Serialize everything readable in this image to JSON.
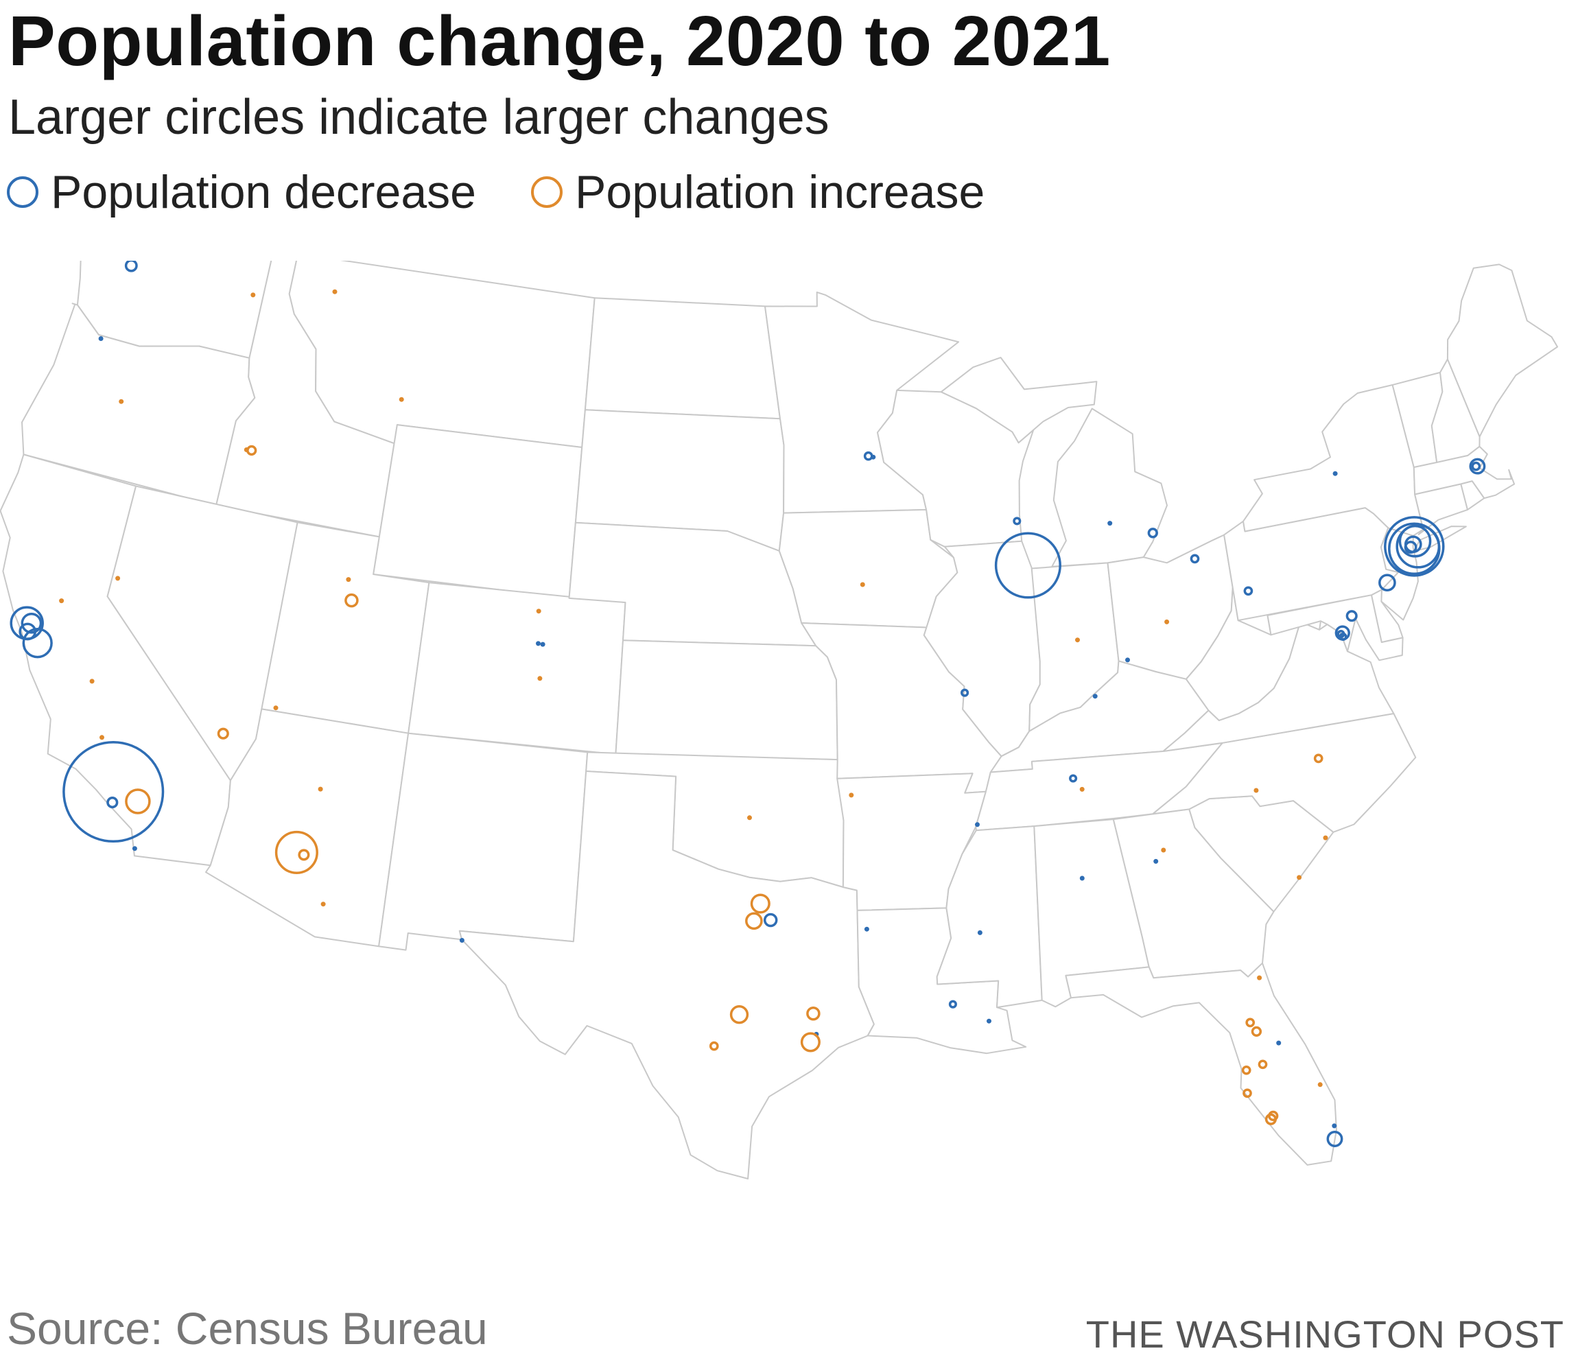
{
  "title": "Population change, 2020 to 2021",
  "subtitle": "Larger circles indicate larger changes",
  "legend": {
    "decrease": {
      "label": "Population decrease",
      "color": "#2e6db4"
    },
    "increase": {
      "label": "Population increase",
      "color": "#e08a2c"
    }
  },
  "source": "Source: Census Bureau",
  "credit": "THE WASHINGTON POST",
  "colors": {
    "state_fill": "#ffffff",
    "state_border": "#c8c8c8",
    "decrease": "#2e6db4",
    "increase": "#e08a2c"
  },
  "map": {
    "projection": "albers-usa-contiguous",
    "states": [
      "WA",
      "OR",
      "CA",
      "ID",
      "NV",
      "MT",
      "WY",
      "UT",
      "AZ",
      "CO",
      "NM",
      "ND",
      "SD",
      "NE",
      "KS",
      "OK",
      "TX",
      "MN",
      "IA",
      "MO",
      "AR",
      "LA",
      "WI",
      "IL",
      "MI",
      "IN",
      "OH",
      "KY",
      "TN",
      "MS",
      "AL",
      "GA",
      "FL",
      "SC",
      "NC",
      "VA",
      "WV",
      "MD",
      "DE",
      "PA",
      "NJ",
      "NY",
      "CT",
      "RI",
      "MA",
      "VT",
      "NH",
      "ME"
    ]
  },
  "points": [
    {
      "place": "New York",
      "lon": -73.95,
      "lat": 40.72,
      "type": "decrease",
      "magnitude": 5.0
    },
    {
      "place": "Brooklyn",
      "lon": -73.97,
      "lat": 40.66,
      "type": "decrease",
      "magnitude": 4.3
    },
    {
      "place": "Queens",
      "lon": -73.82,
      "lat": 40.7,
      "type": "decrease",
      "magnitude": 3.6
    },
    {
      "place": "Bronx",
      "lon": -73.88,
      "lat": 40.85,
      "type": "decrease",
      "magnitude": 2.6
    },
    {
      "place": "Manhattan",
      "lon": -73.97,
      "lat": 40.78,
      "type": "decrease",
      "magnitude": 1.3
    },
    {
      "place": "Jersey City",
      "lon": -74.08,
      "lat": 40.72,
      "type": "decrease",
      "magnitude": 0.9
    },
    {
      "place": "Philadelphia",
      "lon": -75.16,
      "lat": 39.95,
      "type": "decrease",
      "magnitude": 1.3
    },
    {
      "place": "Boston",
      "lon": -71.06,
      "lat": 42.36,
      "type": "decrease",
      "magnitude": 1.2
    },
    {
      "place": "Cambridge",
      "lon": -71.11,
      "lat": 42.37,
      "type": "decrease",
      "magnitude": 0.6
    },
    {
      "place": "Baltimore",
      "lon": -76.61,
      "lat": 39.29,
      "type": "decrease",
      "magnitude": 0.8
    },
    {
      "place": "Washington",
      "lon": -77.04,
      "lat": 38.9,
      "type": "decrease",
      "magnitude": 1.1
    },
    {
      "place": "Arlington",
      "lon": -77.1,
      "lat": 38.88,
      "type": "decrease",
      "magnitude": 0.5
    },
    {
      "place": "Alexandria",
      "lon": -77.05,
      "lat": 38.8,
      "type": "decrease",
      "magnitude": 0.5
    },
    {
      "place": "Chicago",
      "lon": -87.65,
      "lat": 41.85,
      "type": "decrease",
      "magnitude": 5.5
    },
    {
      "place": "Milwaukee",
      "lon": -87.91,
      "lat": 43.04,
      "type": "decrease",
      "magnitude": 0.5
    },
    {
      "place": "Detroit",
      "lon": -83.05,
      "lat": 42.33,
      "type": "decrease",
      "magnitude": 0.7
    },
    {
      "place": "Lansing",
      "lon": -84.55,
      "lat": 42.73,
      "type": "decrease",
      "magnitude": 0.4
    },
    {
      "place": "Cleveland",
      "lon": -81.69,
      "lat": 41.5,
      "type": "decrease",
      "magnitude": 0.6
    },
    {
      "place": "Pittsburgh",
      "lon": -80.0,
      "lat": 40.44,
      "type": "decrease",
      "magnitude": 0.6
    },
    {
      "place": "Syracuse",
      "lon": -76.15,
      "lat": 43.05,
      "type": "decrease",
      "magnitude": 0.3
    },
    {
      "place": "Minneapolis",
      "lon": -93.27,
      "lat": 44.98,
      "type": "decrease",
      "magnitude": 0.6
    },
    {
      "place": "Saint Paul",
      "lon": -93.09,
      "lat": 44.95,
      "type": "decrease",
      "magnitude": 0.4
    },
    {
      "place": "St. Louis",
      "lon": -90.2,
      "lat": 38.63,
      "type": "decrease",
      "magnitude": 0.5
    },
    {
      "place": "Cincinnati",
      "lon": -84.51,
      "lat": 39.1,
      "type": "decrease",
      "magnitude": 0.4
    },
    {
      "place": "Louisville",
      "lon": -85.76,
      "lat": 38.25,
      "type": "decrease",
      "magnitude": 0.3
    },
    {
      "place": "Memphis",
      "lon": -90.05,
      "lat": 35.15,
      "type": "decrease",
      "magnitude": 0.3
    },
    {
      "place": "Nashville",
      "lon": -86.78,
      "lat": 36.16,
      "type": "decrease",
      "magnitude": 0.5
    },
    {
      "place": "Birmingham",
      "lon": -86.8,
      "lat": 33.52,
      "type": "decrease",
      "magnitude": 0.3
    },
    {
      "place": "Jackson",
      "lon": -90.18,
      "lat": 32.3,
      "type": "decrease",
      "magnitude": 0.3
    },
    {
      "place": "New Orleans",
      "lon": -90.07,
      "lat": 29.95,
      "type": "decrease",
      "magnitude": 0.3
    },
    {
      "place": "Baton Rouge",
      "lon": -91.15,
      "lat": 30.45,
      "type": "decrease",
      "magnitude": 0.5
    },
    {
      "place": "Shreveport",
      "lon": -93.75,
      "lat": 32.52,
      "type": "decrease",
      "magnitude": 0.3
    },
    {
      "place": "Atlanta",
      "lon": -84.39,
      "lat": 33.75,
      "type": "decrease",
      "magnitude": 0.3
    },
    {
      "place": "Miami",
      "lon": -80.19,
      "lat": 25.77,
      "type": "decrease",
      "magnitude": 1.2
    },
    {
      "place": "Fort Lauderdale",
      "lon": -80.14,
      "lat": 26.12,
      "type": "decrease",
      "magnitude": 0.4
    },
    {
      "place": "Orlando",
      "lon": -81.38,
      "lat": 28.54,
      "type": "decrease",
      "magnitude": 0.3
    },
    {
      "place": "Dallas",
      "lon": -96.8,
      "lat": 32.78,
      "type": "decrease",
      "magnitude": 1.0
    },
    {
      "place": "El Paso",
      "lon": -106.49,
      "lat": 31.76,
      "type": "decrease",
      "magnitude": 0.3
    },
    {
      "place": "Houston",
      "lon": -95.37,
      "lat": 29.76,
      "type": "decrease",
      "magnitude": 0.3
    },
    {
      "place": "Denver",
      "lon": -104.99,
      "lat": 39.74,
      "type": "decrease",
      "magnitude": 0.3
    },
    {
      "place": "Aurora",
      "lon": -104.83,
      "lat": 39.73,
      "type": "decrease",
      "magnitude": 0.3
    },
    {
      "place": "Seattle",
      "lon": -122.33,
      "lat": 47.61,
      "type": "decrease",
      "magnitude": 0.9
    },
    {
      "place": "Portland",
      "lon": -122.68,
      "lat": 45.52,
      "type": "decrease",
      "magnitude": 0.4
    },
    {
      "place": "San Francisco",
      "lon": -122.42,
      "lat": 37.77,
      "type": "decrease",
      "magnitude": 2.7
    },
    {
      "place": "Oakland",
      "lon": -122.27,
      "lat": 37.8,
      "type": "decrease",
      "magnitude": 1.6
    },
    {
      "place": "San Jose",
      "lon": -121.89,
      "lat": 37.34,
      "type": "decrease",
      "magnitude": 2.4
    },
    {
      "place": "San Mateo",
      "lon": -122.32,
      "lat": 37.56,
      "type": "decrease",
      "magnitude": 1.3
    },
    {
      "place": "Los Angeles",
      "lon": -118.24,
      "lat": 34.05,
      "type": "decrease",
      "magnitude": 8.5
    },
    {
      "place": "Long Beach",
      "lon": -118.19,
      "lat": 33.77,
      "type": "decrease",
      "magnitude": 0.8
    },
    {
      "place": "San Diego",
      "lon": -117.16,
      "lat": 32.72,
      "type": "decrease",
      "magnitude": 0.4
    },
    {
      "place": "Phoenix",
      "lon": -112.07,
      "lat": 33.45,
      "type": "increase",
      "magnitude": 3.5
    },
    {
      "place": "Mesa",
      "lon": -111.83,
      "lat": 33.42,
      "type": "increase",
      "magnitude": 0.8
    },
    {
      "place": "Tucson",
      "lon": -110.97,
      "lat": 32.22,
      "type": "increase",
      "magnitude": 0.4
    },
    {
      "place": "Flagstaff",
      "lon": -111.65,
      "lat": 35.2,
      "type": "increase",
      "magnitude": 0.3
    },
    {
      "place": "Las Vegas",
      "lon": -115.14,
      "lat": 36.17,
      "type": "increase",
      "magnitude": 0.8
    },
    {
      "place": "Riverside",
      "lon": -117.4,
      "lat": 33.95,
      "type": "increase",
      "magnitude": 2.0
    },
    {
      "place": "Bakersfield",
      "lon": -119.02,
      "lat": 35.37,
      "type": "increase",
      "magnitude": 0.3
    },
    {
      "place": "Fresno",
      "lon": -119.79,
      "lat": 36.74,
      "type": "increase",
      "magnitude": 0.3
    },
    {
      "place": "Sacramento",
      "lon": -121.49,
      "lat": 38.58,
      "type": "increase",
      "magnitude": 0.3
    },
    {
      "place": "Reno",
      "lon": -119.81,
      "lat": 39.53,
      "type": "increase",
      "magnitude": 0.3
    },
    {
      "place": "Salt Lake City",
      "lon": -111.89,
      "lat": 40.76,
      "type": "increase",
      "magnitude": 0.3
    },
    {
      "place": "Provo",
      "lon": -111.66,
      "lat": 40.23,
      "type": "increase",
      "magnitude": 1.0
    },
    {
      "place": "St. George",
      "lon": -113.58,
      "lat": 37.1,
      "type": "increase",
      "magnitude": 0.3
    },
    {
      "place": "Boise",
      "lon": -116.2,
      "lat": 43.62,
      "type": "increase",
      "magnitude": 0.7
    },
    {
      "place": "Meridian",
      "lon": -116.39,
      "lat": 43.61,
      "type": "increase",
      "magnitude": 0.4
    },
    {
      "place": "Spokane",
      "lon": -117.43,
      "lat": 47.66,
      "type": "increase",
      "magnitude": 0.3
    },
    {
      "place": "Colorado Springs",
      "lon": -104.82,
      "lat": 38.83,
      "type": "increase",
      "magnitude": 0.3
    },
    {
      "place": "Fort Collins",
      "lon": -105.08,
      "lat": 40.59,
      "type": "increase",
      "magnitude": 0.4
    },
    {
      "place": "Austin",
      "lon": -97.74,
      "lat": 30.27,
      "type": "increase",
      "magnitude": 1.4
    },
    {
      "place": "San Antonio",
      "lon": -98.49,
      "lat": 29.42,
      "type": "increase",
      "magnitude": 0.6
    },
    {
      "place": "Houston suburbs",
      "lon": -95.55,
      "lat": 29.55,
      "type": "increase",
      "magnitude": 1.5
    },
    {
      "place": "Conroe",
      "lon": -95.46,
      "lat": 30.31,
      "type": "increase",
      "magnitude": 1.0
    },
    {
      "place": "Fort Worth",
      "lon": -97.33,
      "lat": 32.75,
      "type": "increase",
      "magnitude": 1.3
    },
    {
      "place": "Denton",
      "lon": -97.13,
      "lat": 33.21,
      "type": "increase",
      "magnitude": 1.5
    },
    {
      "place": "Oklahoma City",
      "lon": -97.52,
      "lat": 35.47,
      "type": "increase",
      "magnitude": 0.3
    },
    {
      "place": "Fayetteville AR",
      "lon": -94.16,
      "lat": 36.06,
      "type": "increase",
      "magnitude": 0.3
    },
    {
      "place": "Nashville suburbs",
      "lon": -86.52,
      "lat": 35.85,
      "type": "increase",
      "magnitude": 0.4
    },
    {
      "place": "Charlotte",
      "lon": -80.84,
      "lat": 35.23,
      "type": "increase",
      "magnitude": 0.3
    },
    {
      "place": "Raleigh",
      "lon": -78.64,
      "lat": 35.78,
      "type": "increase",
      "magnitude": 0.6
    },
    {
      "place": "Atlanta suburbs",
      "lon": -84.1,
      "lat": 34.02,
      "type": "increase",
      "magnitude": 0.4
    },
    {
      "place": "Jacksonville",
      "lon": -81.66,
      "lat": 30.33,
      "type": "increase",
      "magnitude": 0.4
    },
    {
      "place": "Ocala",
      "lon": -82.14,
      "lat": 29.19,
      "type": "increase",
      "magnitude": 0.6
    },
    {
      "place": "The Villages",
      "lon": -81.99,
      "lat": 28.93,
      "type": "increase",
      "magnitude": 0.7
    },
    {
      "place": "Tampa",
      "lon": -82.46,
      "lat": 27.95,
      "type": "increase",
      "magnitude": 0.6
    },
    {
      "place": "Lakeland",
      "lon": -81.95,
      "lat": 28.04,
      "type": "increase",
      "magnitude": 0.6
    },
    {
      "place": "Sarasota",
      "lon": -82.53,
      "lat": 27.34,
      "type": "increase",
      "magnitude": 0.6
    },
    {
      "place": "Fort Myers",
      "lon": -81.87,
      "lat": 26.64,
      "type": "increase",
      "magnitude": 0.7
    },
    {
      "place": "Cape Coral",
      "lon": -81.95,
      "lat": 26.56,
      "type": "increase",
      "magnitude": 0.8
    },
    {
      "place": "Port St. Lucie",
      "lon": -80.35,
      "lat": 27.27,
      "type": "increase",
      "magnitude": 0.4
    },
    {
      "place": "Myrtle Beach",
      "lon": -78.88,
      "lat": 33.69,
      "type": "increase",
      "magnitude": 0.3
    },
    {
      "place": "Charleston SC",
      "lon": -79.93,
      "lat": 32.78,
      "type": "increase",
      "magnitude": 0.3
    },
    {
      "place": "Indianapolis",
      "lon": -86.16,
      "lat": 39.77,
      "type": "increase",
      "magnitude": 0.3
    },
    {
      "place": "Columbus",
      "lon": -82.99,
      "lat": 39.96,
      "type": "increase",
      "magnitude": 0.3
    },
    {
      "place": "Des Moines",
      "lon": -93.61,
      "lat": 41.59,
      "type": "increase",
      "magnitude": 0.3
    },
    {
      "place": "Kalispell",
      "lon": -114.31,
      "lat": 48.2,
      "type": "increase",
      "magnitude": 0.3
    },
    {
      "place": "Bozeman",
      "lon": -111.04,
      "lat": 45.68,
      "type": "increase",
      "magnitude": 0.3
    },
    {
      "place": "Bend",
      "lon": -121.31,
      "lat": 44.06,
      "type": "increase",
      "magnitude": 0.3
    }
  ]
}
